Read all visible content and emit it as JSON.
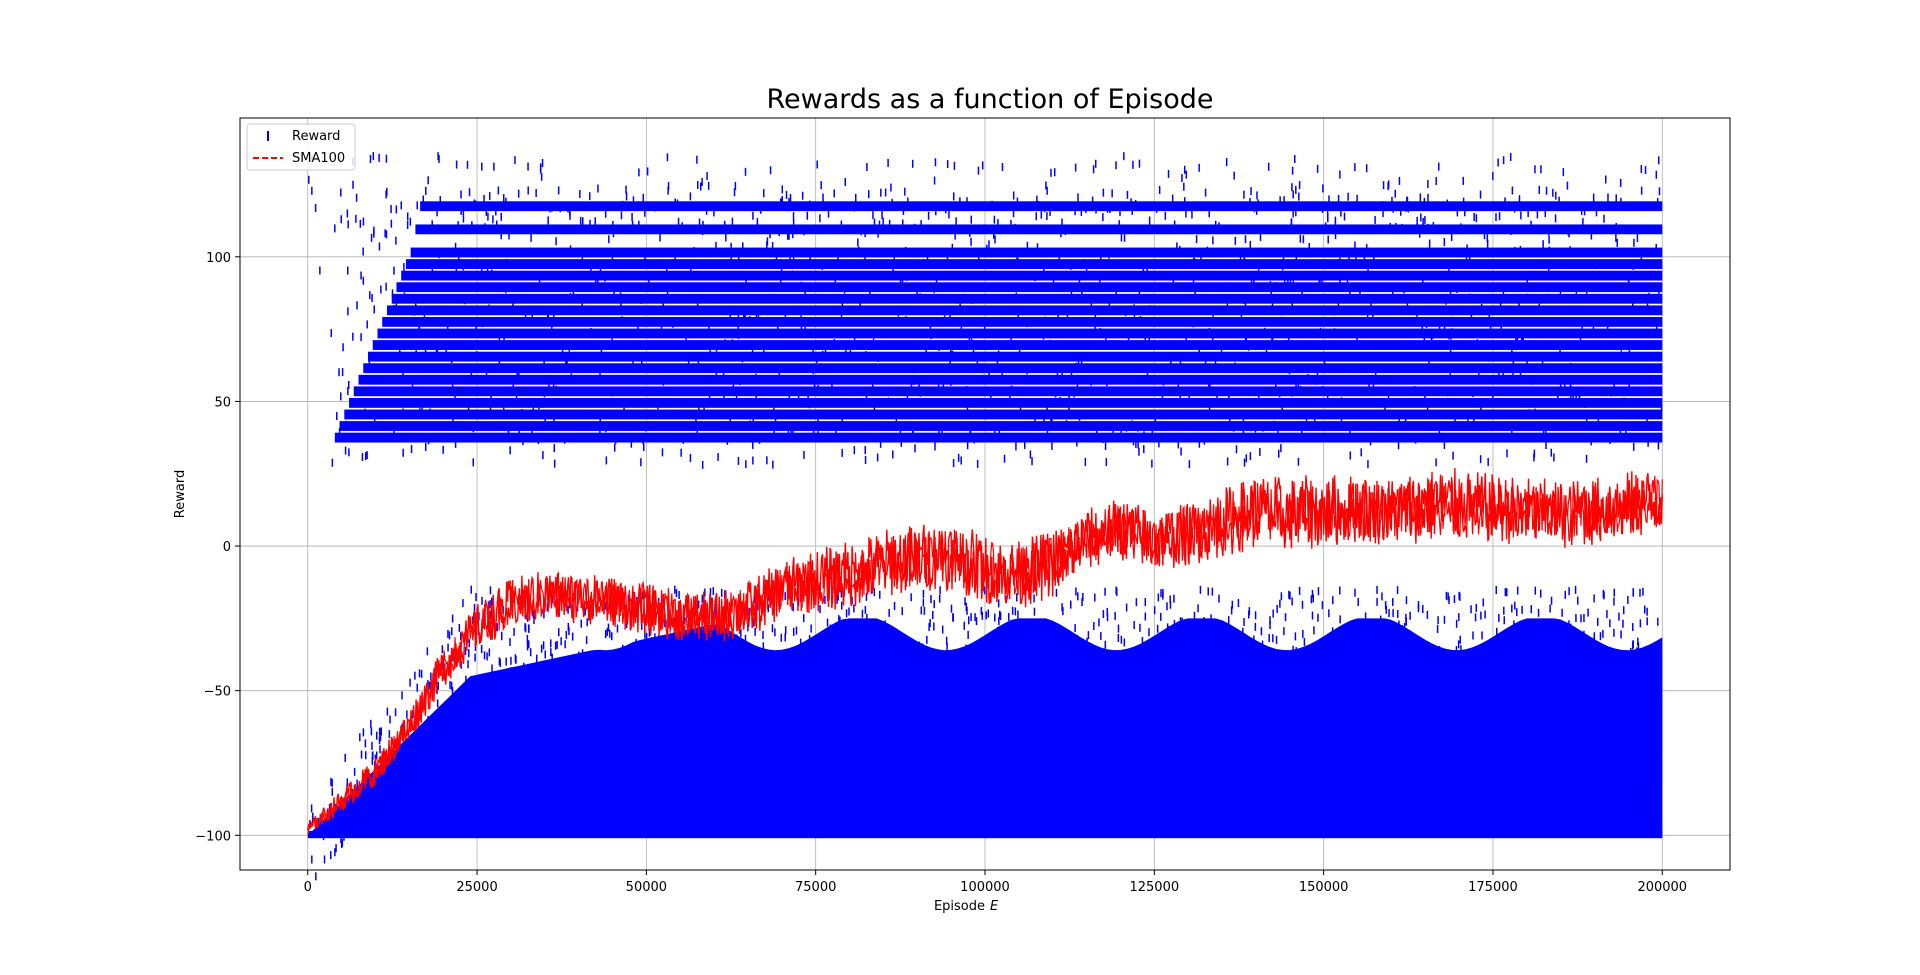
{
  "chart_data": {
    "type": "scatter",
    "title": "Rewards as a function of Episode",
    "xlabel": "Episode",
    "xlabel_italic": "E",
    "ylabel": "Reward",
    "xlim": [
      -10000,
      210000
    ],
    "ylim": [
      -112,
      148
    ],
    "xticks": [
      0,
      25000,
      50000,
      75000,
      100000,
      125000,
      150000,
      175000,
      200000
    ],
    "yticks": [
      -100,
      -50,
      0,
      50,
      100
    ],
    "grid": true,
    "legend_position": "top-left",
    "legend": [
      {
        "label": "Reward",
        "marker": "|",
        "color": "#0000ff"
      },
      {
        "label": "SMA100",
        "linestyle": "dashed",
        "color": "#ff0000"
      }
    ],
    "series": [
      {
        "name": "Reward",
        "kind": "scatter",
        "marker": "|",
        "color": "#0000ff",
        "episodes": [
          0,
          200000
        ],
        "description_bands": {
          "positive_levels": [
            36,
            40,
            44,
            48,
            52,
            56,
            60,
            64,
            68,
            72,
            76,
            80,
            84,
            88,
            92,
            96,
            100,
            108,
            116
          ],
          "negative_range": [
            -100,
            -5
          ],
          "max": 136,
          "min": -100
        }
      },
      {
        "name": "SMA100",
        "kind": "line",
        "linestyle": "dashed",
        "color": "#ff0000",
        "x": [
          0,
          5000,
          10000,
          15000,
          20000,
          25000,
          30000,
          35000,
          40000,
          45000,
          50000,
          55000,
          60000,
          65000,
          70000,
          75000,
          80000,
          85000,
          90000,
          95000,
          100000,
          105000,
          110000,
          115000,
          120000,
          125000,
          130000,
          135000,
          140000,
          145000,
          150000,
          155000,
          160000,
          165000,
          170000,
          175000,
          180000,
          185000,
          190000,
          195000,
          200000
        ],
        "y": [
          -98,
          -88,
          -78,
          -62,
          -42,
          -28,
          -20,
          -17,
          -18,
          -19,
          -22,
          -24,
          -25,
          -22,
          -15,
          -12,
          -10,
          -6,
          -4,
          -3,
          -8,
          -10,
          -6,
          2,
          6,
          2,
          4,
          8,
          12,
          11,
          12,
          13,
          12,
          14,
          14,
          13,
          12,
          11,
          12,
          14,
          16
        ],
        "noise_amplitude": [
          2,
          4,
          5,
          6,
          7,
          8,
          9,
          9,
          9,
          9,
          9,
          9,
          9,
          10,
          10,
          11,
          12,
          12,
          12,
          12,
          12,
          12,
          12,
          11,
          11,
          11,
          11,
          12,
          13,
          13,
          13,
          12,
          12,
          13,
          13,
          12,
          12,
          12,
          12,
          12,
          12
        ]
      }
    ]
  }
}
